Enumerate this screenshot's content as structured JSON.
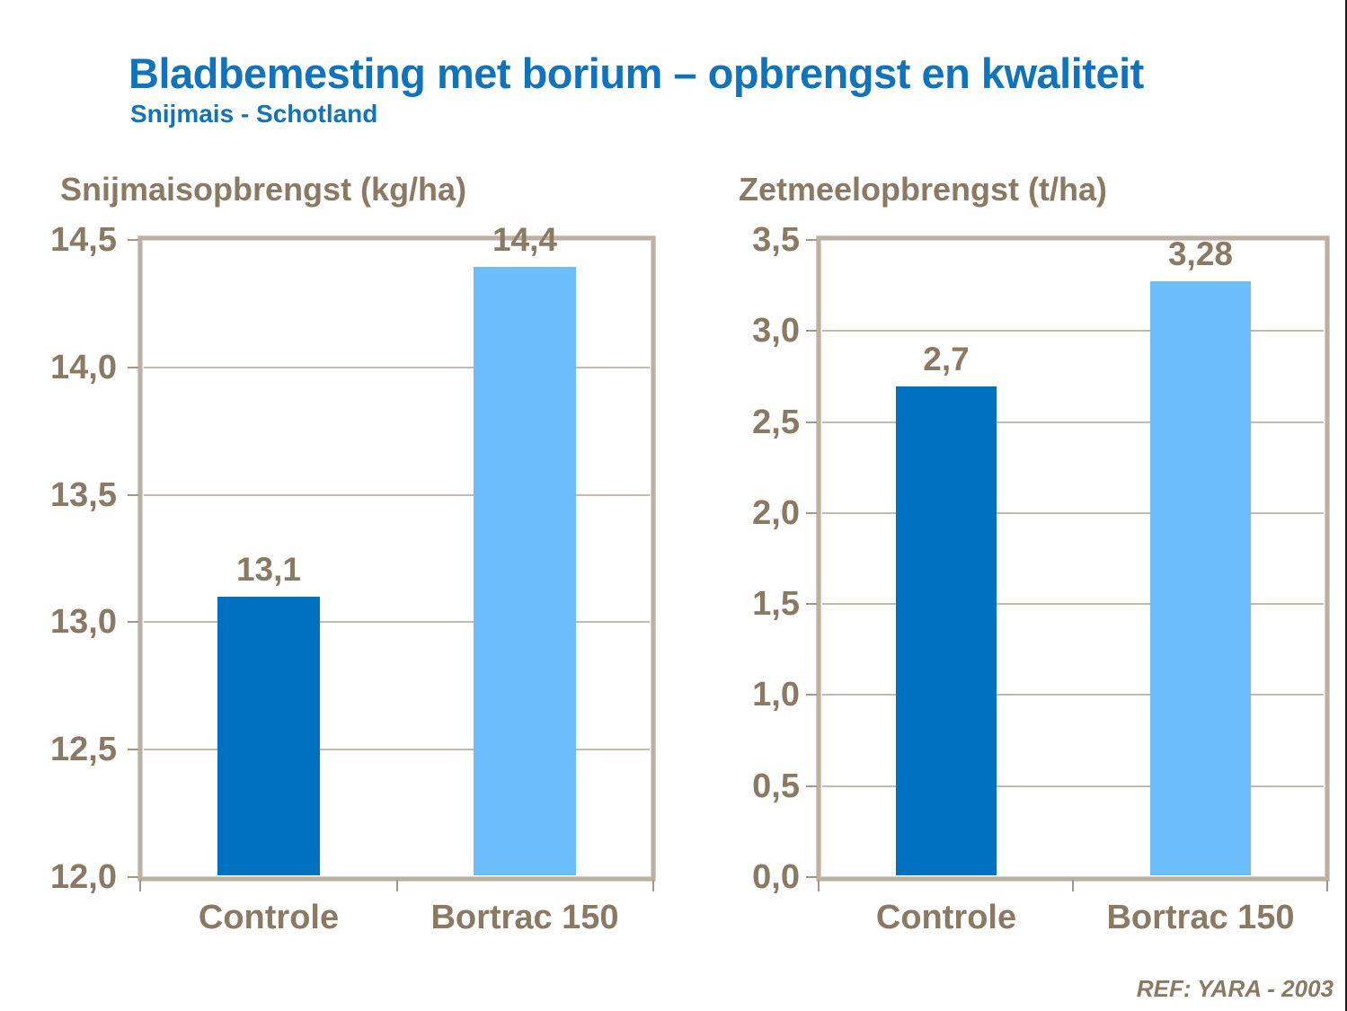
{
  "page": {
    "title": "Bladbemesting met borium – opbrengst en kwaliteit",
    "subtitle": "Snijmais - Schotland",
    "reference": "REF: YARA - 2003"
  },
  "colors": {
    "title_blue": "#1173BC",
    "text_taupe": "#8B7A63",
    "frame_taupe": "#BCB0A3",
    "frame_edge_taupe": "#A49786",
    "gridline_taupe": "#C6BAAD",
    "bar_dark_blue": "#0070C0",
    "bar_light_blue": "#6BBEFB",
    "background": "#FFFFFF"
  },
  "chart_data": [
    {
      "type": "bar",
      "title": "Snijmaisopbrengst (kg/ha)",
      "categories": [
        "Controle",
        "Bortrac 150"
      ],
      "values": [
        13.1,
        14.4
      ],
      "value_labels": [
        "13,1",
        "14,4"
      ],
      "ylim": [
        12.0,
        14.5
      ],
      "ytick_step": 0.5,
      "ytick_labels": [
        "12,0",
        "12,5",
        "13,0",
        "13,5",
        "14,0",
        "14,5"
      ],
      "grid": true,
      "legend": "none",
      "bar_colors": [
        "#0070C0",
        "#6BBEFB"
      ]
    },
    {
      "type": "bar",
      "title": "Zetmeelopbrengst (t/ha)",
      "categories": [
        "Controle",
        "Bortrac 150"
      ],
      "values": [
        2.7,
        3.28
      ],
      "value_labels": [
        "2,7",
        "3,28"
      ],
      "ylim": [
        0.0,
        3.5
      ],
      "ytick_step": 0.5,
      "ytick_labels": [
        "0,0",
        "0,5",
        "1,0",
        "1,5",
        "2,0",
        "2,5",
        "3,0",
        "3,5"
      ],
      "grid": true,
      "legend": "none",
      "bar_colors": [
        "#0070C0",
        "#6BBEFB"
      ]
    }
  ]
}
